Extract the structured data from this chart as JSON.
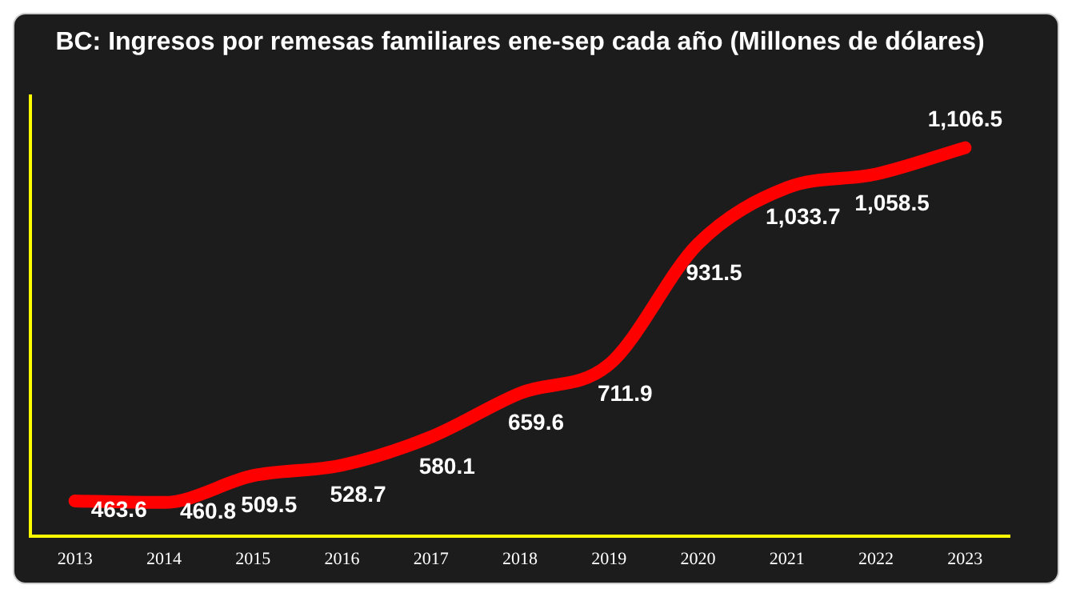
{
  "chart_data": {
    "type": "line",
    "title": "BC: Ingresos por remesas familiares ene-sep cada año (Millones de dólares)",
    "categories": [
      "2013",
      "2014",
      "2015",
      "2016",
      "2017",
      "2018",
      "2019",
      "2020",
      "2021",
      "2022",
      "2023"
    ],
    "series": [
      {
        "color": "#ff0000",
        "values": [
          463.6,
          460.8,
          509.5,
          528.7,
          580.1,
          659.6,
          711.9,
          931.5,
          1033.7,
          1058.5,
          1106.5
        ],
        "value_labels": [
          "463.6",
          "460.8",
          "509.5",
          "528.7",
          "580.1",
          "659.6",
          "711.9",
          "931.5",
          "1,033.7",
          "1,058.5",
          "1,106.5"
        ]
      }
    ],
    "grid": false,
    "legend": false,
    "marker": "none",
    "line_style": "solid"
  }
}
